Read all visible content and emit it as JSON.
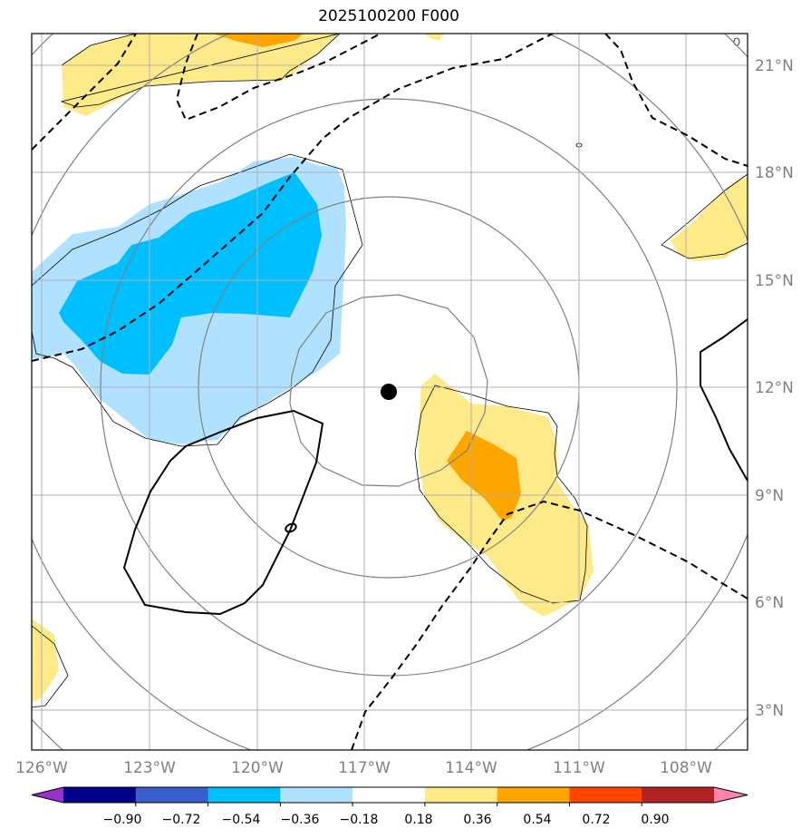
{
  "title": "2025100200 F000",
  "longitude_labels": [
    "126°W",
    "123°W",
    "120°W",
    "117°W",
    "114°W",
    "111°W",
    "108°W"
  ],
  "latitude_labels": [
    "21°N",
    "18°N",
    "15°N",
    "12°N",
    "9°N",
    "6°N",
    "3°N"
  ],
  "colorbar": {
    "ticks": [
      "−0.90",
      "−0.72",
      "−0.54",
      "−0.36",
      "−0.18",
      "0.18",
      "0.36",
      "0.54",
      "0.72",
      "0.90"
    ],
    "colors": [
      "#9932cc",
      "#00008b",
      "#3a5fcd",
      "#00bfff",
      "#b0e2ff",
      "#ffffff",
      "#ffea8a",
      "#ffa500",
      "#ff4500",
      "#b22222",
      "#ff82ab"
    ]
  },
  "fill_colors": {
    "light_blue": "#b0e2ff",
    "blue": "#00bfff",
    "light_yellow": "#ffea8a",
    "orange": "#ffa500"
  },
  "storm_center": {
    "lon": "116.3°W",
    "lat": "11.9°N"
  }
}
